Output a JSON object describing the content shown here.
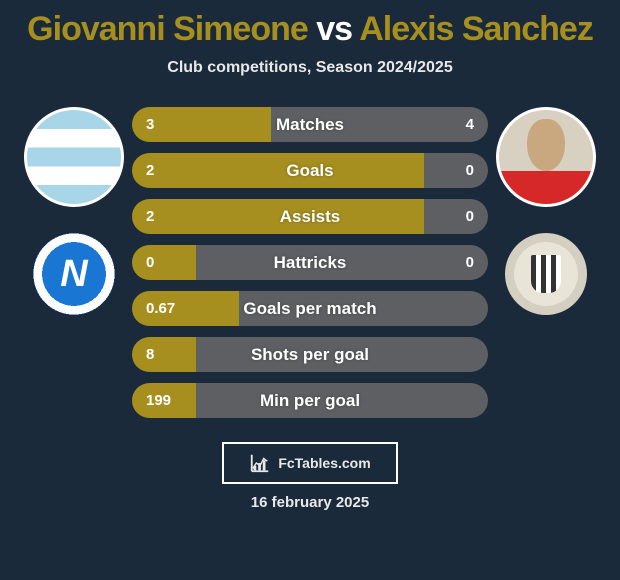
{
  "accent_color": "#a68f1f",
  "neutral_color": "#5e5f62",
  "title": {
    "player1": "Giovanni Simeone",
    "vs": " vs ",
    "player2": "Alexis Sanchez",
    "player1_color": "#a68f1f",
    "vs_color": "#ffffff",
    "player2_color": "#a68f1f"
  },
  "subtitle": "Club competitions, Season 2024/2025",
  "stats": [
    {
      "label": "Matches",
      "left_val": "3",
      "right_val": "4",
      "bar_split_pct": 39
    },
    {
      "label": "Goals",
      "left_val": "2",
      "right_val": "0",
      "bar_split_pct": 82
    },
    {
      "label": "Assists",
      "left_val": "2",
      "right_val": "0",
      "bar_split_pct": 82
    },
    {
      "label": "Hattricks",
      "left_val": "0",
      "right_val": "0",
      "bar_split_pct": 18
    },
    {
      "label": "Goals per match",
      "left_val": "0.67",
      "right_val": "",
      "bar_split_pct": 30
    },
    {
      "label": "Shots per goal",
      "left_val": "8",
      "right_val": "",
      "bar_split_pct": 18
    },
    {
      "label": "Min per goal",
      "left_val": "199",
      "right_val": "",
      "bar_split_pct": 18
    }
  ],
  "footer_brand": "FcTables.com",
  "date": "16 february 2025"
}
